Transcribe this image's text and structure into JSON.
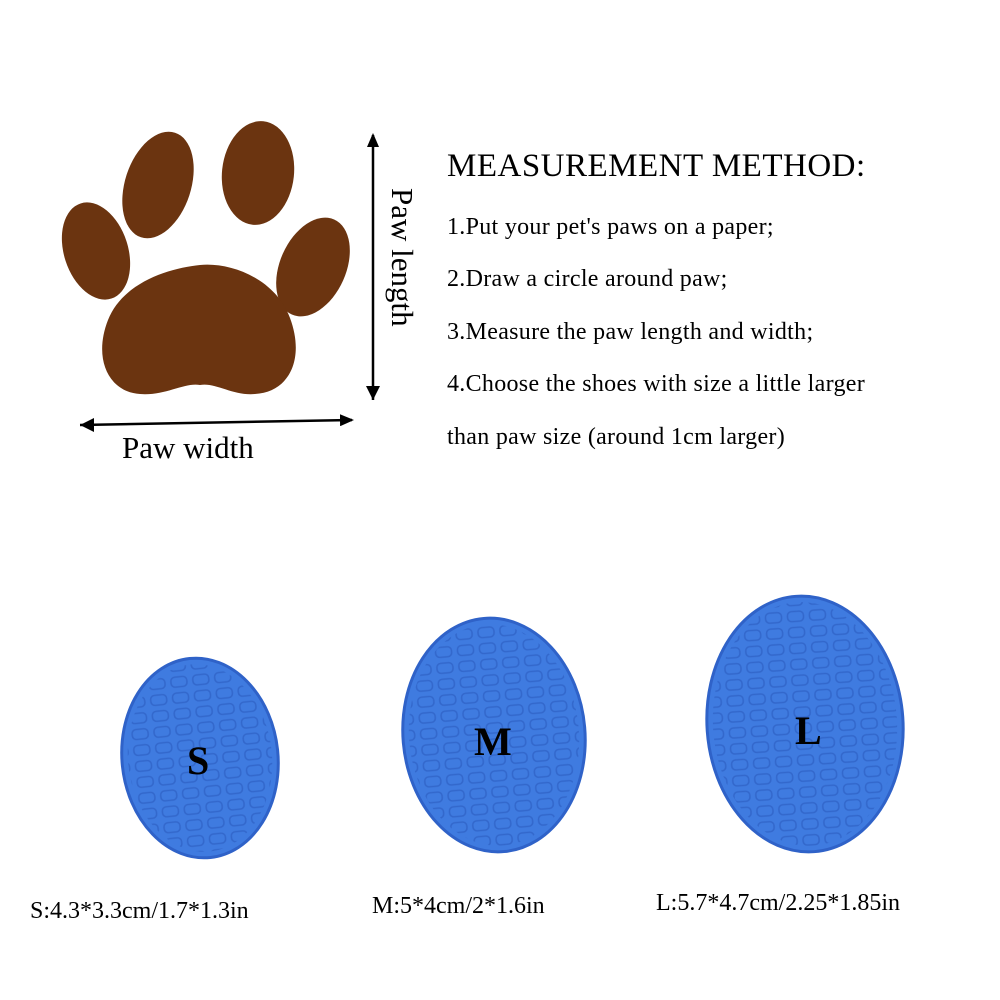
{
  "title": "MEASUREMENT METHOD:",
  "steps": [
    "1.Put your pet's paws on a paper;",
    "2.Draw a circle around paw;",
    "3.Measure the paw length and width;",
    "4.Choose the shoes with size a little larger",
    "than paw size (around 1cm larger)"
  ],
  "labels": {
    "paw_width": "Paw width",
    "paw_length": "Paw length"
  },
  "sizes": [
    {
      "letter": "S",
      "caption": "S:4.3*3.3cm/1.7*1.3in"
    },
    {
      "letter": "M",
      "caption": "M:5*4cm/2*1.6in"
    },
    {
      "letter": "L",
      "caption": "L:5.7*4.7cm/2.25*1.85in"
    }
  ],
  "colors": {
    "paw": "#6b3410",
    "sole": "#3f7be0",
    "sole_dark": "#2f62c8",
    "text": "#000000"
  }
}
